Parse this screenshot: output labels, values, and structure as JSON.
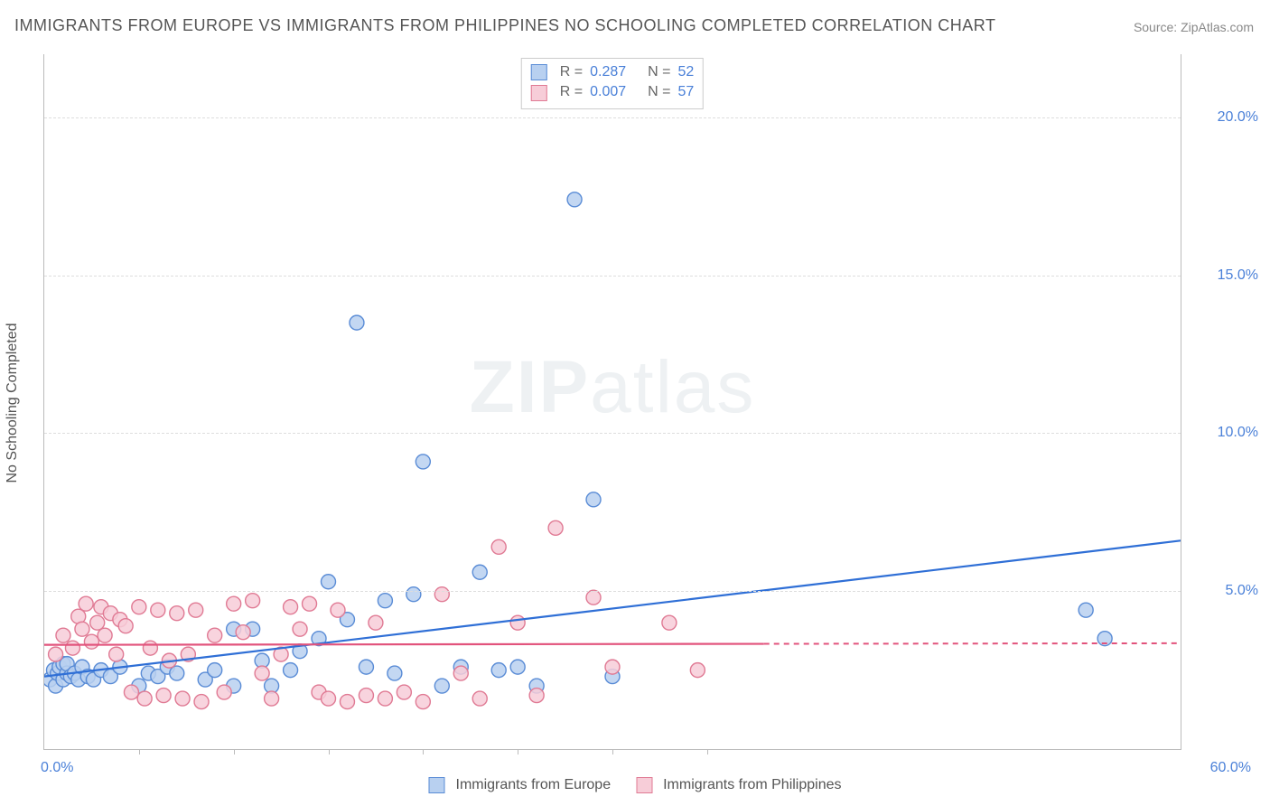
{
  "title": "IMMIGRANTS FROM EUROPE VS IMMIGRANTS FROM PHILIPPINES NO SCHOOLING COMPLETED CORRELATION CHART",
  "source_label": "Source:",
  "source_value": "ZipAtlas.com",
  "ylabel": "No Schooling Completed",
  "watermark_a": "ZIP",
  "watermark_b": "atlas",
  "chart": {
    "type": "scatter",
    "xlim": [
      0,
      60
    ],
    "ylim": [
      0,
      22
    ],
    "yticks": [
      {
        "v": 5,
        "label": "5.0%"
      },
      {
        "v": 10,
        "label": "10.0%"
      },
      {
        "v": 15,
        "label": "15.0%"
      },
      {
        "v": 20,
        "label": "20.0%"
      }
    ],
    "xticks_minor": [
      5,
      10,
      15,
      20,
      25,
      30,
      35
    ],
    "xticks_labeled": [
      {
        "v": 0,
        "label": "0.0%"
      },
      {
        "v": 60,
        "label": "60.0%"
      }
    ],
    "grid_color": "#dddddd",
    "background_color": "#ffffff",
    "axis_color": "#bbbbbb",
    "tick_label_color": "#4a80d8",
    "marker_radius": 8,
    "marker_stroke_width": 1.4,
    "series": [
      {
        "name": "Immigrants from Europe",
        "fill": "#b8d0f0",
        "stroke": "#5a8cd6",
        "trend_color": "#2f6fd6",
        "trend_solid_to_x": 60,
        "trend_y0": 2.3,
        "trend_y1": 6.6,
        "R": "0.287",
        "N": "52",
        "points": [
          [
            0.3,
            2.2
          ],
          [
            0.5,
            2.5
          ],
          [
            0.6,
            2.0
          ],
          [
            0.7,
            2.4
          ],
          [
            0.8,
            2.6
          ],
          [
            1.0,
            2.2
          ],
          [
            1.0,
            2.7
          ],
          [
            1.2,
            2.4
          ],
          [
            1.2,
            2.7
          ],
          [
            1.4,
            2.3
          ],
          [
            1.6,
            2.4
          ],
          [
            1.8,
            2.2
          ],
          [
            2.0,
            2.6
          ],
          [
            2.3,
            2.3
          ],
          [
            2.6,
            2.2
          ],
          [
            3.0,
            2.5
          ],
          [
            3.5,
            2.3
          ],
          [
            4.0,
            2.6
          ],
          [
            5.0,
            2.0
          ],
          [
            5.5,
            2.4
          ],
          [
            6.0,
            2.3
          ],
          [
            6.5,
            2.6
          ],
          [
            7.0,
            2.4
          ],
          [
            8.5,
            2.2
          ],
          [
            9.0,
            2.5
          ],
          [
            10.0,
            3.8
          ],
          [
            10.0,
            2.0
          ],
          [
            11.0,
            3.8
          ],
          [
            11.5,
            2.8
          ],
          [
            12.0,
            2.0
          ],
          [
            13.0,
            2.5
          ],
          [
            13.5,
            3.1
          ],
          [
            14.5,
            3.5
          ],
          [
            15.0,
            5.3
          ],
          [
            16.0,
            4.1
          ],
          [
            16.5,
            13.5
          ],
          [
            17.0,
            2.6
          ],
          [
            18.0,
            4.7
          ],
          [
            18.5,
            2.4
          ],
          [
            19.5,
            4.9
          ],
          [
            20.0,
            9.1
          ],
          [
            21.0,
            2.0
          ],
          [
            22.0,
            2.6
          ],
          [
            23.0,
            5.6
          ],
          [
            24.0,
            2.5
          ],
          [
            25.0,
            2.6
          ],
          [
            26.0,
            2.0
          ],
          [
            28.0,
            17.4
          ],
          [
            29.0,
            7.9
          ],
          [
            30.0,
            2.3
          ],
          [
            55.0,
            4.4
          ],
          [
            56.0,
            3.5
          ]
        ]
      },
      {
        "name": "Immigrants from Philippines",
        "fill": "#f7cdd8",
        "stroke": "#e07a94",
        "trend_color": "#e2537c",
        "trend_solid_to_x": 38,
        "trend_y0": 3.3,
        "trend_y1": 3.35,
        "R": "0.007",
        "N": "57",
        "points": [
          [
            0.6,
            3.0
          ],
          [
            1.0,
            3.6
          ],
          [
            1.5,
            3.2
          ],
          [
            1.8,
            4.2
          ],
          [
            2.0,
            3.8
          ],
          [
            2.2,
            4.6
          ],
          [
            2.5,
            3.4
          ],
          [
            2.8,
            4.0
          ],
          [
            3.0,
            4.5
          ],
          [
            3.2,
            3.6
          ],
          [
            3.5,
            4.3
          ],
          [
            3.8,
            3.0
          ],
          [
            4.0,
            4.1
          ],
          [
            4.3,
            3.9
          ],
          [
            4.6,
            1.8
          ],
          [
            5.0,
            4.5
          ],
          [
            5.3,
            1.6
          ],
          [
            5.6,
            3.2
          ],
          [
            6.0,
            4.4
          ],
          [
            6.3,
            1.7
          ],
          [
            6.6,
            2.8
          ],
          [
            7.0,
            4.3
          ],
          [
            7.3,
            1.6
          ],
          [
            7.6,
            3.0
          ],
          [
            8.0,
            4.4
          ],
          [
            8.3,
            1.5
          ],
          [
            9.0,
            3.6
          ],
          [
            9.5,
            1.8
          ],
          [
            10.0,
            4.6
          ],
          [
            10.5,
            3.7
          ],
          [
            11.0,
            4.7
          ],
          [
            11.5,
            2.4
          ],
          [
            12.0,
            1.6
          ],
          [
            12.5,
            3.0
          ],
          [
            13.0,
            4.5
          ],
          [
            13.5,
            3.8
          ],
          [
            14.0,
            4.6
          ],
          [
            14.5,
            1.8
          ],
          [
            15.0,
            1.6
          ],
          [
            15.5,
            4.4
          ],
          [
            16.0,
            1.5
          ],
          [
            17.0,
            1.7
          ],
          [
            17.5,
            4.0
          ],
          [
            18.0,
            1.6
          ],
          [
            19.0,
            1.8
          ],
          [
            20.0,
            1.5
          ],
          [
            21.0,
            4.9
          ],
          [
            22.0,
            2.4
          ],
          [
            23.0,
            1.6
          ],
          [
            24.0,
            6.4
          ],
          [
            25.0,
            4.0
          ],
          [
            26.0,
            1.7
          ],
          [
            27.0,
            7.0
          ],
          [
            29.0,
            4.8
          ],
          [
            30.0,
            2.6
          ],
          [
            33.0,
            4.0
          ],
          [
            34.5,
            2.5
          ]
        ]
      }
    ]
  },
  "legend_bottom": [
    {
      "swatch_fill": "#b8d0f0",
      "swatch_stroke": "#5a8cd6",
      "label": "Immigrants from Europe"
    },
    {
      "swatch_fill": "#f7cdd8",
      "swatch_stroke": "#e07a94",
      "label": "Immigrants from Philippines"
    }
  ]
}
